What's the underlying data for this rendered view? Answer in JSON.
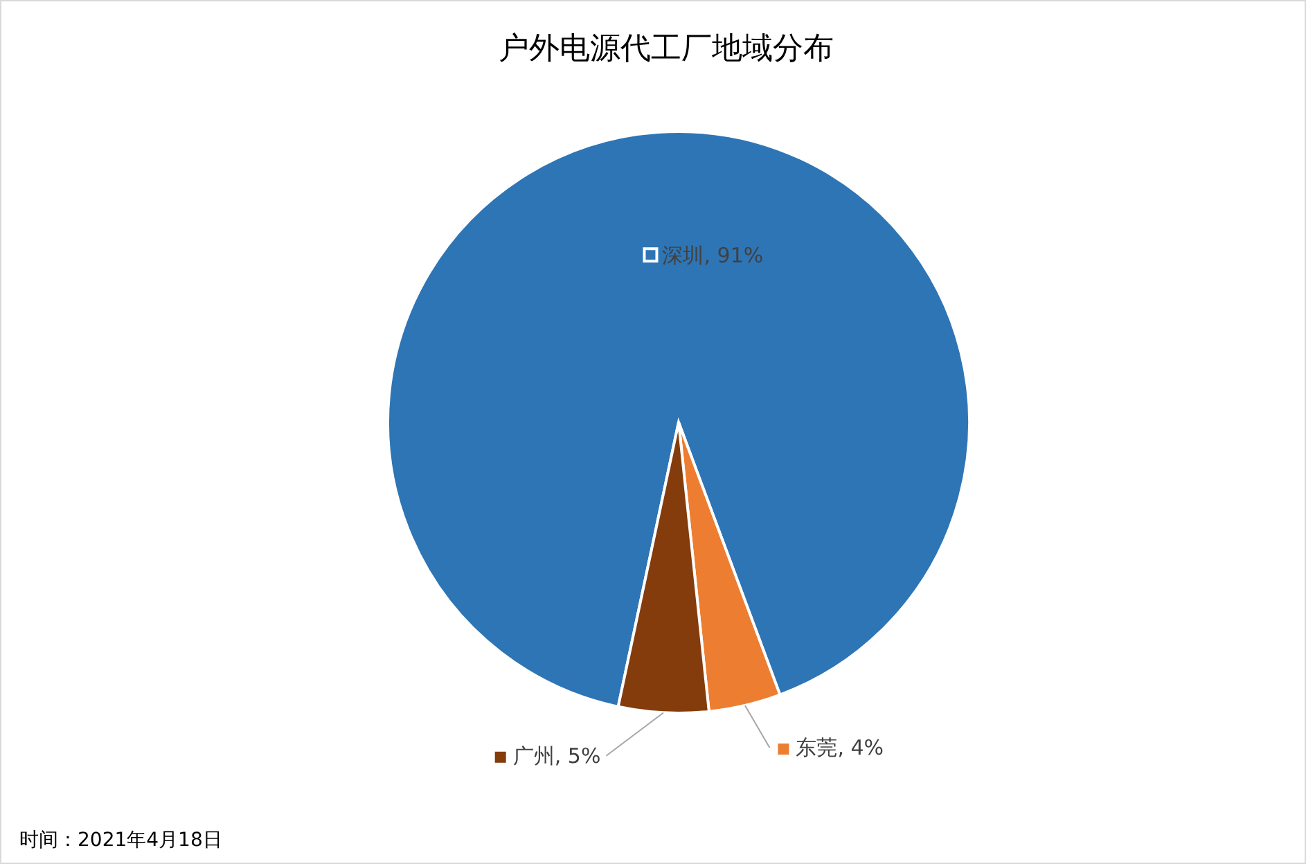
{
  "chart_data": {
    "type": "pie",
    "title": "户外电源代工厂地域分布",
    "categories": [
      "深圳",
      "东莞",
      "广州"
    ],
    "values": [
      91,
      4,
      5
    ],
    "value_labels": [
      "91%",
      "4%",
      "5%"
    ],
    "colors": [
      "#2e75b6",
      "#ed7d31",
      "#843c0c"
    ],
    "legend": "center",
    "annotations": [
      "时间：2021年4月18日"
    ]
  }
}
